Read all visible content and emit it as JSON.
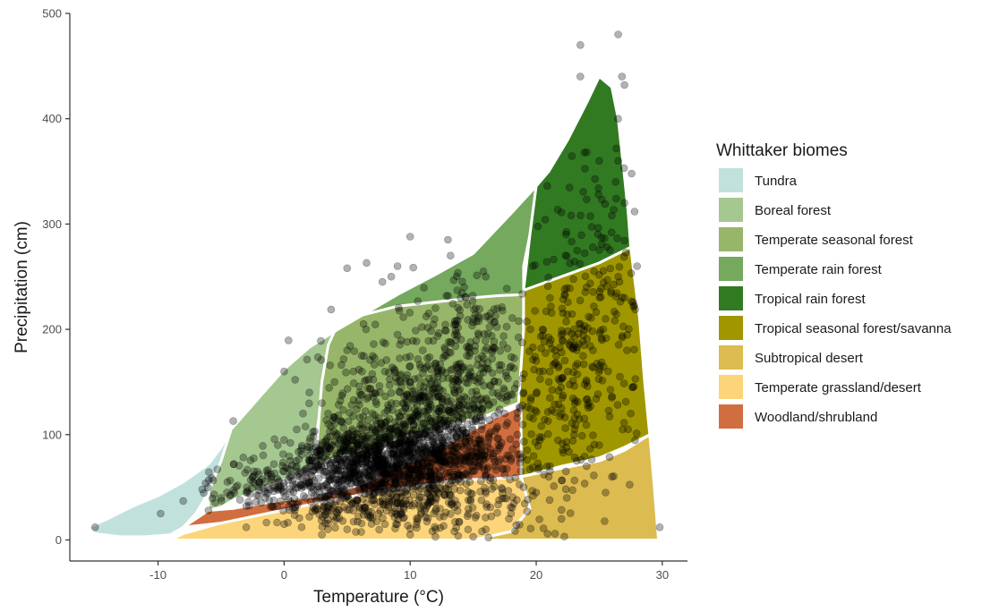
{
  "chart_data": {
    "type": "scatter",
    "title": "",
    "xlabel": "Temperature (°C)",
    "ylabel": "Precipitation (cm)",
    "xlim": [
      -17,
      32
    ],
    "ylim": [
      -20,
      500
    ],
    "x_ticks": [
      -10,
      0,
      10,
      20,
      30
    ],
    "x_tick_labels": [
      "-10",
      "0",
      "10",
      "20",
      "30"
    ],
    "y_ticks": [
      0,
      100,
      200,
      300,
      400,
      500
    ],
    "y_tick_labels": [
      "0",
      "100",
      "200",
      "300",
      "400",
      "500"
    ],
    "grid": false,
    "legend": {
      "title": "Whittaker biomes",
      "position": "right",
      "entries": [
        {
          "name": "Tundra",
          "color": "#C1E1DD"
        },
        {
          "name": "Boreal forest",
          "color": "#A5C790"
        },
        {
          "name": "Temperate seasonal forest",
          "color": "#97B669"
        },
        {
          "name": "Temperate rain forest",
          "color": "#75A95E"
        },
        {
          "name": "Tropical rain forest",
          "color": "#317A22"
        },
        {
          "name": "Tropical seasonal forest/savanna",
          "color": "#A09700"
        },
        {
          "name": "Subtropical desert",
          "color": "#DCBB50"
        },
        {
          "name": "Temperate grassland/desert",
          "color": "#FCD57A"
        },
        {
          "name": "Woodland/shrubland",
          "color": "#D16E3F"
        }
      ]
    },
    "biome_polygons": [
      {
        "name": "Tundra",
        "color": "#C1E1DD",
        "points": [
          [
            -15.5,
            12
          ],
          [
            -14,
            20
          ],
          [
            -12,
            32
          ],
          [
            -10,
            42
          ],
          [
            -8,
            55
          ],
          [
            -6,
            72
          ],
          [
            -5,
            88
          ],
          [
            -4.2,
            105
          ],
          [
            -5,
            75
          ],
          [
            -6,
            45
          ],
          [
            -7,
            25
          ],
          [
            -8,
            12
          ],
          [
            -9,
            5
          ],
          [
            -11,
            3
          ],
          [
            -13,
            3
          ],
          [
            -15,
            6
          ]
        ]
      },
      {
        "name": "Boreal forest",
        "color": "#A5C790",
        "points": [
          [
            -4.2,
            105
          ],
          [
            -2,
            135
          ],
          [
            0,
            162
          ],
          [
            2,
            183
          ],
          [
            4,
            198
          ],
          [
            3.5,
            185
          ],
          [
            3,
            150
          ],
          [
            2.8,
            120
          ],
          [
            2.5,
            92
          ],
          [
            2.2,
            72
          ],
          [
            1.5,
            65
          ],
          [
            0,
            57
          ],
          [
            -2,
            47
          ],
          [
            -4,
            38
          ],
          [
            -5,
            31
          ],
          [
            -6,
            28
          ],
          [
            -6,
            45
          ],
          [
            -5,
            75
          ]
        ]
      },
      {
        "name": "Temperate seasonal forest",
        "color": "#97B669",
        "points": [
          [
            4,
            198
          ],
          [
            6,
            213
          ],
          [
            9,
            222
          ],
          [
            12,
            226
          ],
          [
            15,
            230
          ],
          [
            17,
            232
          ],
          [
            19,
            233
          ],
          [
            19,
            200
          ],
          [
            18.8,
            165
          ],
          [
            18.6,
            130
          ],
          [
            16,
            118
          ],
          [
            13,
            108
          ],
          [
            10,
            99
          ],
          [
            7,
            88
          ],
          [
            4,
            77
          ],
          [
            2.5,
            72
          ],
          [
            2.8,
            120
          ],
          [
            3,
            150
          ],
          [
            3.5,
            185
          ]
        ]
      },
      {
        "name": "Temperate rain forest",
        "color": "#75A95E",
        "points": [
          [
            4,
            198
          ],
          [
            6,
            212
          ],
          [
            9,
            233
          ],
          [
            12,
            252
          ],
          [
            15,
            272
          ],
          [
            18,
            310
          ],
          [
            20,
            336
          ],
          [
            19.5,
            290
          ],
          [
            19,
            260
          ],
          [
            19,
            233
          ],
          [
            17,
            232
          ],
          [
            15,
            230
          ],
          [
            12,
            226
          ],
          [
            9,
            222
          ],
          [
            6,
            213
          ]
        ]
      },
      {
        "name": "Tropical rain forest",
        "color": "#317A22",
        "points": [
          [
            20,
            336
          ],
          [
            21,
            350
          ],
          [
            22.5,
            380
          ],
          [
            24,
            415
          ],
          [
            25,
            440
          ],
          [
            26,
            430
          ],
          [
            26.5,
            400
          ],
          [
            27,
            345
          ],
          [
            27.3,
            310
          ],
          [
            27.5,
            278
          ],
          [
            25,
            263
          ],
          [
            22,
            250
          ],
          [
            19,
            237
          ],
          [
            19.5,
            290
          ]
        ]
      },
      {
        "name": "Tropical seasonal forest/savanna",
        "color": "#A09700",
        "points": [
          [
            19,
            237
          ],
          [
            22,
            250
          ],
          [
            25,
            263
          ],
          [
            27.5,
            278
          ],
          [
            28.2,
            210
          ],
          [
            28.6,
            150
          ],
          [
            29,
            100
          ],
          [
            27,
            88
          ],
          [
            25,
            78
          ],
          [
            22,
            70
          ],
          [
            19.5,
            62
          ],
          [
            18.8,
            60
          ],
          [
            18.8,
            100
          ],
          [
            18.6,
            130
          ],
          [
            18.8,
            165
          ],
          [
            19,
            200
          ]
        ]
      },
      {
        "name": "Subtropical desert",
        "color": "#DCBB50",
        "points": [
          [
            15,
            0
          ],
          [
            18,
            8
          ],
          [
            19.5,
            30
          ],
          [
            18.8,
            60
          ],
          [
            22,
            68
          ],
          [
            25,
            75
          ],
          [
            27,
            85
          ],
          [
            29,
            100
          ],
          [
            29.3,
            60
          ],
          [
            29.7,
            0
          ]
        ]
      },
      {
        "name": "Temperate grassland/desert",
        "color": "#FCD57A",
        "points": [
          [
            -9,
            0
          ],
          [
            -8,
            6
          ],
          [
            -5,
            16
          ],
          [
            -1,
            26
          ],
          [
            3,
            36
          ],
          [
            7,
            45
          ],
          [
            11,
            52
          ],
          [
            14,
            57
          ],
          [
            16.5,
            58
          ],
          [
            18.8,
            60
          ],
          [
            19.5,
            30
          ],
          [
            18,
            8
          ],
          [
            15,
            0
          ]
        ]
      },
      {
        "name": "Woodland/shrubland",
        "color": "#D16E3F",
        "points": [
          [
            -6,
            28
          ],
          [
            -4,
            30
          ],
          [
            0,
            38
          ],
          [
            3,
            42
          ],
          [
            6,
            52
          ],
          [
            9,
            68
          ],
          [
            12,
            85
          ],
          [
            15,
            105
          ],
          [
            17,
            118
          ],
          [
            18.8,
            128
          ],
          [
            18.8,
            100
          ],
          [
            18.8,
            60
          ],
          [
            16.5,
            58
          ],
          [
            14,
            57
          ],
          [
            11,
            52
          ],
          [
            7,
            45
          ],
          [
            3,
            36
          ],
          [
            -1,
            26
          ],
          [
            -5,
            16
          ],
          [
            -8,
            12
          ]
        ]
      }
    ],
    "points": [
      [
        -15,
        12
      ],
      [
        -9.8,
        25
      ],
      [
        -8,
        37
      ],
      [
        -6.5,
        48
      ],
      [
        -6,
        28
      ],
      [
        -5,
        40
      ],
      [
        -4.5,
        55
      ],
      [
        -4,
        72
      ],
      [
        -3.5,
        38
      ],
      [
        -3,
        45
      ],
      [
        -2.5,
        60
      ],
      [
        -2,
        50
      ],
      [
        -1.5,
        40
      ],
      [
        -1,
        55
      ],
      [
        -0.5,
        90
      ],
      [
        0,
        160
      ],
      [
        0,
        95
      ],
      [
        0.5,
        75
      ],
      [
        1,
        105
      ],
      [
        1.2,
        60
      ],
      [
        1.5,
        120
      ],
      [
        2,
        140
      ],
      [
        2.5,
        88
      ],
      [
        2.2,
        55
      ],
      [
        2.8,
        45
      ],
      [
        3,
        130
      ],
      [
        3.5,
        110
      ],
      [
        4,
        150
      ],
      [
        4.5,
        95
      ],
      [
        5,
        258
      ],
      [
        5,
        180
      ],
      [
        5.5,
        160
      ],
      [
        5.5,
        70
      ],
      [
        6,
        140
      ],
      [
        6.2,
        110
      ],
      [
        6.5,
        200
      ],
      [
        7,
        120
      ],
      [
        7.5,
        90
      ],
      [
        7.8,
        245
      ],
      [
        8,
        160
      ],
      [
        8.5,
        250
      ],
      [
        8.5,
        130
      ],
      [
        9,
        260
      ],
      [
        9,
        195
      ],
      [
        9.5,
        110
      ],
      [
        9.5,
        60
      ],
      [
        10,
        288
      ],
      [
        10,
        150
      ],
      [
        10.5,
        100
      ],
      [
        11,
        180
      ],
      [
        11,
        70
      ],
      [
        11.5,
        130
      ],
      [
        12,
        90
      ],
      [
        12,
        220
      ],
      [
        12.5,
        160
      ],
      [
        13,
        285
      ],
      [
        13.2,
        270
      ],
      [
        13.5,
        140
      ],
      [
        14,
        100
      ],
      [
        14,
        230
      ],
      [
        14.5,
        175
      ],
      [
        15,
        210
      ],
      [
        15.2,
        220
      ],
      [
        15.8,
        255
      ],
      [
        16,
        250
      ],
      [
        16,
        212
      ],
      [
        16.5,
        180
      ],
      [
        17,
        150
      ],
      [
        17,
        90
      ],
      [
        17.5,
        120
      ],
      [
        18,
        165
      ],
      [
        18,
        75
      ],
      [
        18.5,
        100
      ],
      [
        19,
        140
      ],
      [
        19,
        50
      ],
      [
        20,
        170
      ],
      [
        20.5,
        200
      ],
      [
        21,
        150
      ],
      [
        21.5,
        180
      ],
      [
        22,
        311
      ],
      [
        22,
        125
      ],
      [
        22.5,
        160
      ],
      [
        23,
        200
      ],
      [
        23,
        100
      ],
      [
        23.5,
        470
      ],
      [
        23.5,
        440
      ],
      [
        24,
        240
      ],
      [
        24,
        150
      ],
      [
        24.5,
        180
      ],
      [
        25,
        360
      ],
      [
        25,
        90
      ],
      [
        25.5,
        210
      ],
      [
        26,
        308
      ],
      [
        26,
        135
      ],
      [
        26.3,
        340
      ],
      [
        26.5,
        480
      ],
      [
        26.5,
        360
      ],
      [
        26.5,
        250
      ],
      [
        26.8,
        440
      ],
      [
        27,
        432
      ],
      [
        27,
        320
      ],
      [
        27,
        230
      ],
      [
        27.2,
        180
      ],
      [
        27.5,
        120
      ],
      [
        28,
        260
      ],
      [
        29.8,
        12
      ],
      [
        3,
        5
      ],
      [
        5,
        10
      ],
      [
        8,
        15
      ],
      [
        10,
        5
      ],
      [
        12,
        3
      ],
      [
        13.5,
        8
      ],
      [
        15,
        3
      ],
      [
        16,
        10
      ],
      [
        18,
        25
      ],
      [
        20,
        45
      ],
      [
        22,
        20
      ],
      [
        24,
        70
      ],
      [
        25.5,
        45
      ],
      [
        26,
        60
      ],
      [
        21.5,
        6
      ],
      [
        -3,
        12
      ],
      [
        0,
        15
      ],
      [
        2,
        22
      ],
      [
        6,
        30
      ],
      [
        9,
        35
      ],
      [
        12,
        40
      ],
      [
        14,
        55
      ],
      [
        16,
        60
      ],
      [
        17.5,
        62
      ],
      [
        8,
        100
      ],
      [
        9,
        75
      ],
      [
        10,
        85
      ],
      [
        11,
        78
      ],
      [
        12,
        65
      ],
      [
        13,
        60
      ],
      [
        14,
        70
      ],
      [
        15,
        65
      ],
      [
        7,
        80
      ],
      [
        6,
        90
      ],
      [
        5,
        100
      ],
      [
        4,
        110
      ],
      [
        3,
        90
      ],
      [
        2,
        80
      ],
      [
        1,
        70
      ],
      [
        0,
        65
      ],
      [
        -1,
        60
      ],
      [
        -2,
        55
      ]
    ],
    "dense_clusters": [
      {
        "cx": 9,
        "cy": 75,
        "sx": 4,
        "sy": 18,
        "n": 950
      },
      {
        "cx": 12,
        "cy": 120,
        "sx": 4,
        "sy": 35,
        "n": 700
      },
      {
        "cx": 3,
        "cy": 55,
        "sx": 4,
        "sy": 15,
        "n": 300
      },
      {
        "cx": 9,
        "cy": 30,
        "sx": 5,
        "sy": 12,
        "n": 220
      },
      {
        "cx": 23,
        "cy": 160,
        "sx": 2.3,
        "sy": 55,
        "n": 230
      },
      {
        "cx": 24.5,
        "cy": 280,
        "sx": 1.8,
        "sy": 50,
        "n": 70
      },
      {
        "cx": 15,
        "cy": 200,
        "sx": 2.5,
        "sy": 30,
        "n": 120
      }
    ],
    "dense_seed": 7
  }
}
